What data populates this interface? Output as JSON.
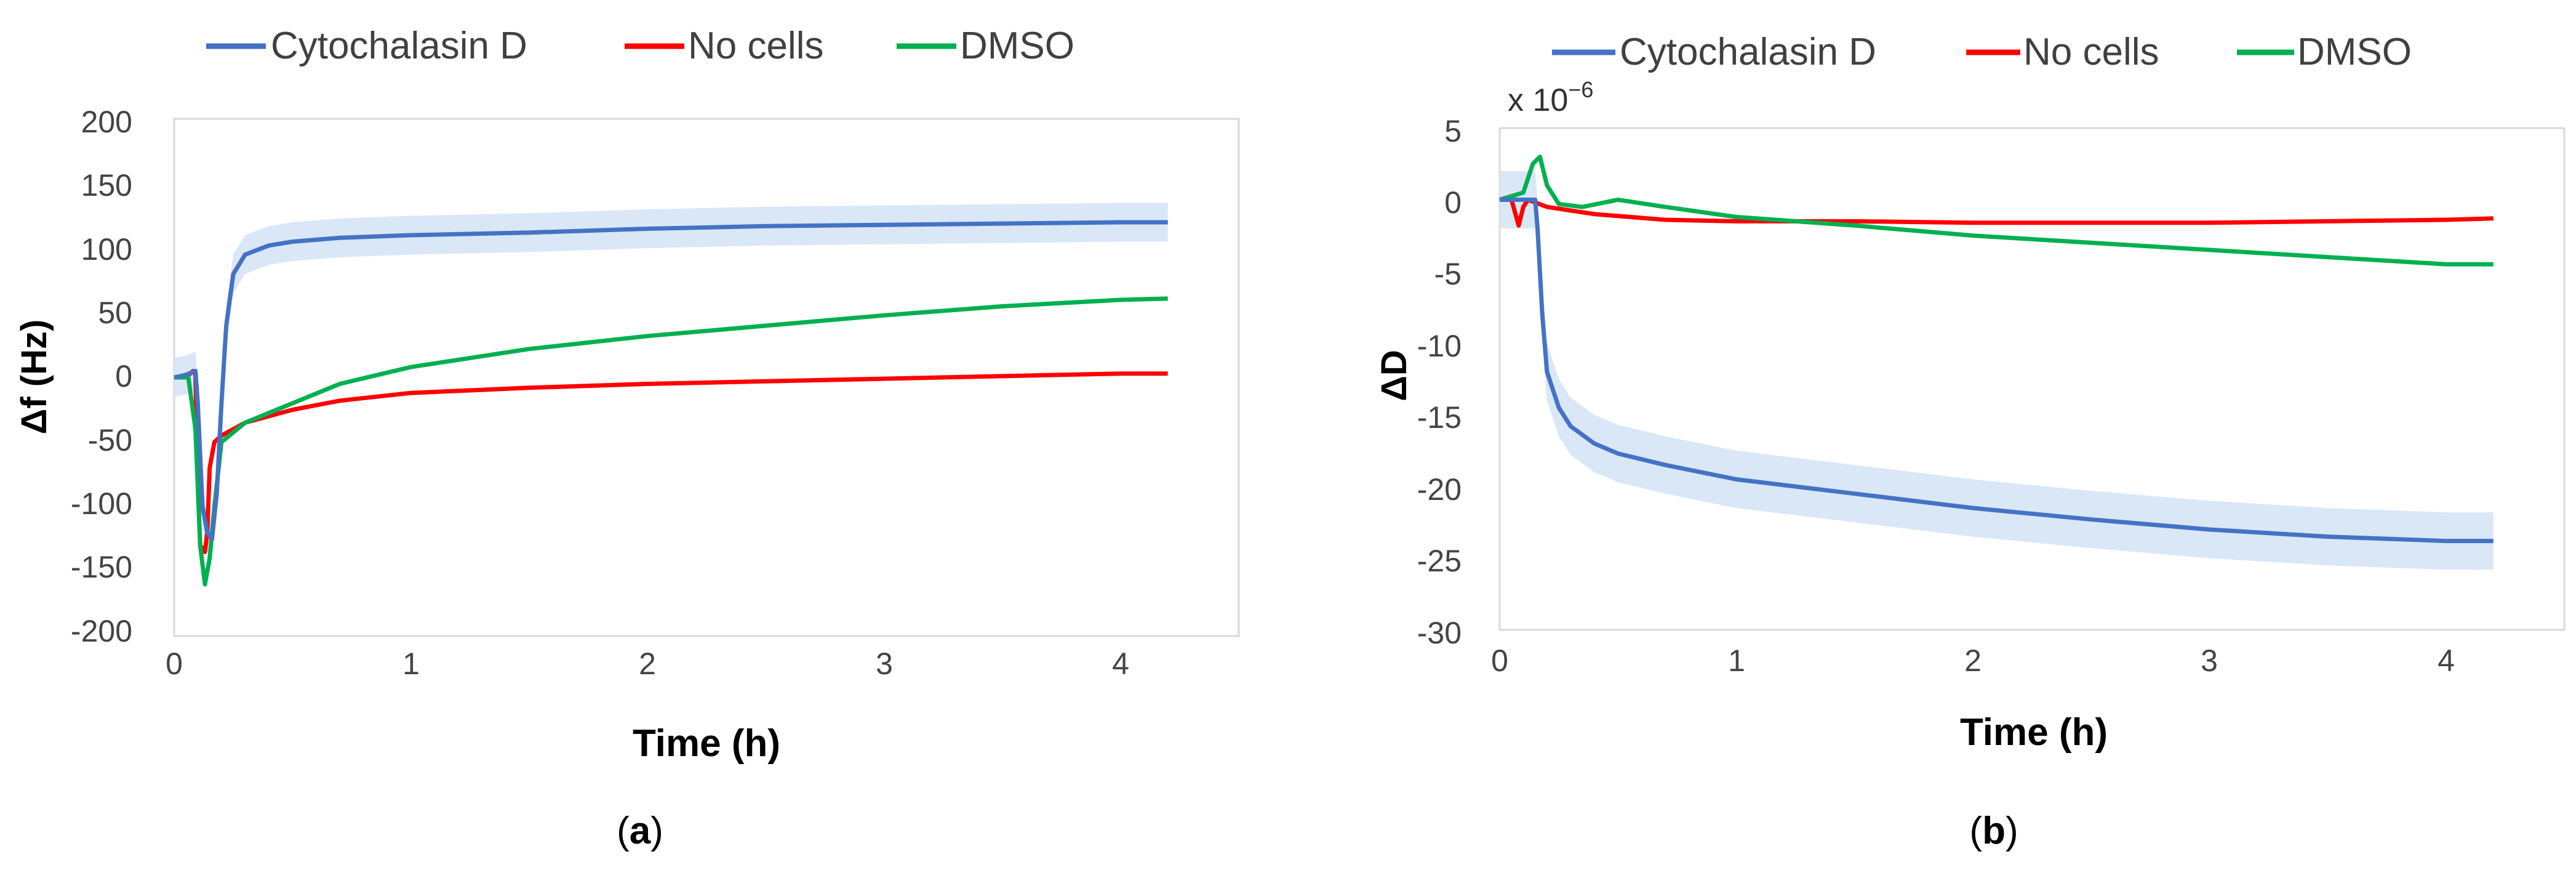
{
  "figure": {
    "panels": [
      {
        "label_open": "(",
        "letter": "a",
        "label_close": ")"
      },
      {
        "label_open": "(",
        "letter": "b",
        "label_close": ")"
      }
    ],
    "scale_note": {
      "base": "x 10",
      "exponent": "−6"
    }
  },
  "colors": {
    "cytochalasin": "#4472C4",
    "no_cells": "#FF0000",
    "dmso": "#00B050",
    "band": "#DAE7F7",
    "frame": "#D9D9D9"
  },
  "chart_data": [
    {
      "type": "line",
      "panel": "a",
      "title": "",
      "xlabel": "Time (h)",
      "ylabel": "Δf (Hz)",
      "xlim": [
        0,
        4.5
      ],
      "ylim": [
        -200,
        200
      ],
      "xticks": [
        0,
        1,
        2,
        3,
        4
      ],
      "yticks": [
        200,
        150,
        100,
        50,
        0,
        -50,
        -100,
        -150,
        -200
      ],
      "legend": [
        "Cytochalasin D",
        "No cells",
        "DMSO"
      ],
      "legend_position": "top",
      "series": [
        {
          "name": "Cytochalasin D",
          "color": "#4472C4",
          "band": 15,
          "points": [
            [
              0,
              0
            ],
            [
              0.05,
              2
            ],
            [
              0.09,
              5
            ],
            [
              0.1,
              -20
            ],
            [
              0.12,
              -100
            ],
            [
              0.14,
              -120
            ],
            [
              0.16,
              -125
            ],
            [
              0.18,
              -90
            ],
            [
              0.2,
              -20
            ],
            [
              0.22,
              40
            ],
            [
              0.25,
              80
            ],
            [
              0.3,
              95
            ],
            [
              0.4,
              102
            ],
            [
              0.5,
              105
            ],
            [
              0.7,
              108
            ],
            [
              1,
              110
            ],
            [
              1.5,
              112
            ],
            [
              2,
              115
            ],
            [
              2.5,
              117
            ],
            [
              3,
              118
            ],
            [
              3.5,
              119
            ],
            [
              4,
              120
            ],
            [
              4.2,
              120
            ]
          ]
        },
        {
          "name": "No cells",
          "color": "#FF0000",
          "band": 0,
          "points": [
            [
              0,
              0
            ],
            [
              0.05,
              0
            ],
            [
              0.08,
              5
            ],
            [
              0.09,
              2
            ],
            [
              0.1,
              -80
            ],
            [
              0.11,
              -130
            ],
            [
              0.13,
              -135
            ],
            [
              0.14,
              -120
            ],
            [
              0.15,
              -70
            ],
            [
              0.17,
              -50
            ],
            [
              0.2,
              -45
            ],
            [
              0.3,
              -35
            ],
            [
              0.5,
              -25
            ],
            [
              0.7,
              -18
            ],
            [
              1,
              -12
            ],
            [
              1.5,
              -8
            ],
            [
              2,
              -5
            ],
            [
              2.5,
              -3
            ],
            [
              3,
              -1
            ],
            [
              3.5,
              1
            ],
            [
              4,
              3
            ],
            [
              4.2,
              3
            ]
          ]
        },
        {
          "name": "DMSO",
          "color": "#00B050",
          "band": 0,
          "points": [
            [
              0,
              0
            ],
            [
              0.06,
              0
            ],
            [
              0.09,
              -40
            ],
            [
              0.11,
              -130
            ],
            [
              0.13,
              -160
            ],
            [
              0.15,
              -140
            ],
            [
              0.17,
              -100
            ],
            [
              0.2,
              -50
            ],
            [
              0.3,
              -35
            ],
            [
              0.5,
              -20
            ],
            [
              0.7,
              -5
            ],
            [
              1,
              8
            ],
            [
              1.5,
              22
            ],
            [
              2,
              32
            ],
            [
              2.5,
              40
            ],
            [
              3,
              48
            ],
            [
              3.5,
              55
            ],
            [
              4,
              60
            ],
            [
              4.2,
              61
            ]
          ]
        }
      ]
    },
    {
      "type": "line",
      "panel": "b",
      "title": "",
      "xlabel": "Time (h)",
      "ylabel": "ΔD",
      "y_scale_note": "x 10^-6",
      "xlim": [
        0,
        4.5
      ],
      "ylim": [
        -30,
        5
      ],
      "xticks": [
        0,
        1,
        2,
        3,
        4
      ],
      "yticks": [
        5,
        0,
        -5,
        -10,
        -15,
        -20,
        -25,
        -30
      ],
      "legend": [
        "Cytochalasin D",
        "No cells",
        "DMSO"
      ],
      "legend_position": "top",
      "series": [
        {
          "name": "Cytochalasin D",
          "color": "#4472C4",
          "band": 2,
          "points": [
            [
              0,
              0
            ],
            [
              0.1,
              0
            ],
            [
              0.15,
              0
            ],
            [
              0.16,
              -2
            ],
            [
              0.18,
              -8
            ],
            [
              0.2,
              -12
            ],
            [
              0.25,
              -14.5
            ],
            [
              0.3,
              -15.8
            ],
            [
              0.4,
              -17
            ],
            [
              0.5,
              -17.7
            ],
            [
              0.7,
              -18.5
            ],
            [
              1,
              -19.5
            ],
            [
              1.5,
              -20.5
            ],
            [
              2,
              -21.5
            ],
            [
              2.5,
              -22.3
            ],
            [
              3,
              -23
            ],
            [
              3.5,
              -23.5
            ],
            [
              4,
              -23.8
            ],
            [
              4.2,
              -23.8
            ]
          ]
        },
        {
          "name": "No cells",
          "color": "#FF0000",
          "band": 0,
          "points": [
            [
              0,
              0
            ],
            [
              0.05,
              0
            ],
            [
              0.08,
              -1.8
            ],
            [
              0.1,
              -0.5
            ],
            [
              0.12,
              0
            ],
            [
              0.2,
              -0.5
            ],
            [
              0.4,
              -1
            ],
            [
              0.7,
              -1.4
            ],
            [
              1,
              -1.5
            ],
            [
              1.5,
              -1.5
            ],
            [
              2,
              -1.6
            ],
            [
              2.5,
              -1.6
            ],
            [
              3,
              -1.6
            ],
            [
              3.5,
              -1.5
            ],
            [
              4,
              -1.4
            ],
            [
              4.2,
              -1.3
            ]
          ]
        },
        {
          "name": "DMSO",
          "color": "#00B050",
          "band": 0,
          "points": [
            [
              0,
              0
            ],
            [
              0.1,
              0.5
            ],
            [
              0.14,
              2.5
            ],
            [
              0.17,
              3
            ],
            [
              0.2,
              1
            ],
            [
              0.25,
              -0.3
            ],
            [
              0.35,
              -0.5
            ],
            [
              0.5,
              0
            ],
            [
              0.7,
              -0.5
            ],
            [
              1,
              -1.2
            ],
            [
              1.5,
              -1.8
            ],
            [
              2,
              -2.5
            ],
            [
              2.5,
              -3
            ],
            [
              3,
              -3.5
            ],
            [
              3.5,
              -4
            ],
            [
              4,
              -4.5
            ],
            [
              4.2,
              -4.5
            ]
          ]
        }
      ]
    }
  ]
}
